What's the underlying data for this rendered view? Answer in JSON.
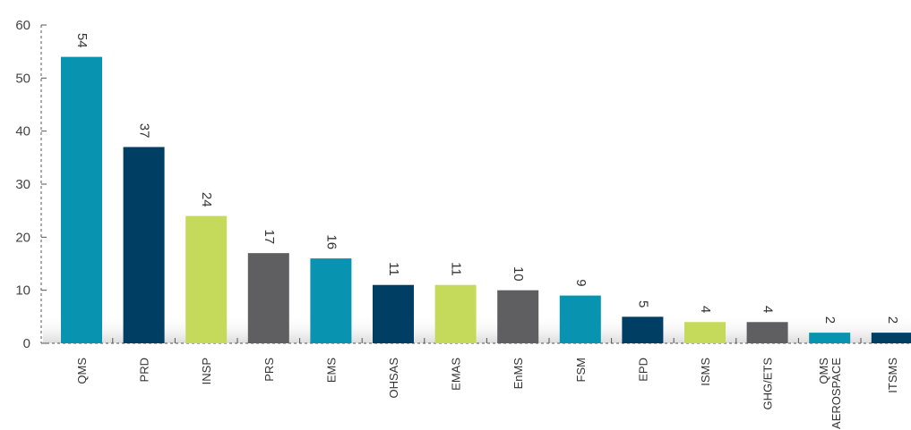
{
  "chart_data": {
    "type": "bar",
    "categories": [
      "QMS",
      "PRD",
      "INSP",
      "PRS",
      "EMS",
      "OHSAS",
      "EMAS",
      "EnMS",
      "FSM",
      "EPD",
      "ISMS",
      "GHG/ETS",
      "QMS\nAEROSPACE",
      "ITSMS"
    ],
    "values": [
      54,
      37,
      24,
      17,
      16,
      11,
      11,
      10,
      9,
      5,
      4,
      4,
      2,
      2
    ],
    "bar_colors": [
      "#0893B0",
      "#003F63",
      "#C5D95A",
      "#5F5F61",
      "#0893B0",
      "#003F63",
      "#C5D95A",
      "#5F5F61",
      "#0893B0",
      "#003F63",
      "#C5D95A",
      "#5F5F61",
      "#0893B0",
      "#003F63"
    ],
    "yticks": [
      "0",
      "10",
      "20",
      "30",
      "40",
      "50",
      "60"
    ],
    "ylim": [
      0,
      60
    ],
    "title": "",
    "xlabel": "",
    "ylabel": "",
    "grid": false,
    "legend": "none"
  }
}
